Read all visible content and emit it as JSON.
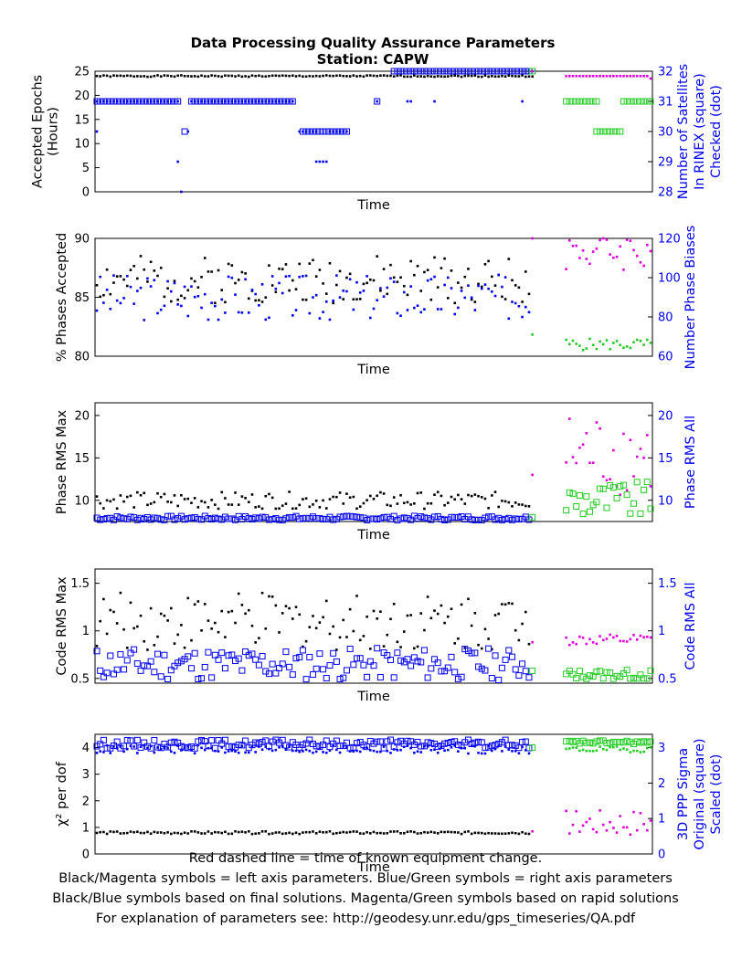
{
  "title": "Data Processing Quality Assurance Parameters",
  "subtitle": "Station: CAPW",
  "footer": [
    "Red dashed line = time of known equipment change.",
    "Black/Magenta symbols = left axis parameters. Blue/Green symbols = right axis parameters",
    "Black/Blue symbols based on final solutions.  Magenta/Green symbols based on rapid solutions",
    "For explanation of parameters see: http://geodesy.unr.edu/gps_timeseries/QA.pdf"
  ],
  "colors": {
    "final_left": "#000000",
    "final_right": "#0000ee",
    "rapid_left": "#dd00dd",
    "rapid_right": "#22cc22"
  },
  "chart_data": [
    {
      "type": "scatter",
      "xlabel": "Time",
      "ylabel_left": [
        "Accepted Epochs",
        "(Hours)"
      ],
      "ylabel_right": [
        "Number of Satellites",
        "In RINEX (square)",
        "Checked (dot)"
      ],
      "ylim_left": [
        0,
        25
      ],
      "ylim_right": [
        28,
        32
      ],
      "yticks_left": [
        0,
        5,
        10,
        15,
        20,
        25
      ],
      "yticks_right": [
        28,
        29,
        30,
        31,
        32
      ],
      "n": 150,
      "gap": [
        130,
        138
      ],
      "series": [
        {
          "side": "left",
          "marker": "dot",
          "color": "final_left",
          "segments": [
            {
              "from": 0,
              "to": 129,
              "base": 24,
              "amp": 0.15,
              "seed": 1
            }
          ]
        },
        {
          "side": "right",
          "marker": "square",
          "color": "final_right",
          "segments": [
            {
              "from": 0,
              "to": 24,
              "base": 31,
              "amp": 0
            },
            {
              "from": 26,
              "to": 26,
              "base": 30,
              "amp": 0
            },
            {
              "from": 28,
              "to": 58,
              "base": 31,
              "amp": 0
            },
            {
              "from": 61,
              "to": 74,
              "base": 30,
              "amp": 0
            },
            {
              "from": 83,
              "to": 83,
              "base": 31,
              "amp": 0
            },
            {
              "from": 88,
              "to": 129,
              "base": 32,
              "amp": 0
            }
          ]
        },
        {
          "side": "right",
          "marker": "dot",
          "color": "final_right",
          "segments": [
            {
              "from": 0,
              "to": 24,
              "base": 31,
              "amp": 0
            },
            {
              "from": 0,
              "to": 0,
              "base": 30,
              "amp": 0
            },
            {
              "from": 24,
              "to": 24,
              "base": 29,
              "amp": 0
            },
            {
              "from": 25,
              "to": 25,
              "base": 28,
              "amp": 0
            },
            {
              "from": 27,
              "to": 27,
              "base": 30,
              "amp": 0
            },
            {
              "from": 28,
              "to": 58,
              "base": 31,
              "amp": 0
            },
            {
              "from": 60,
              "to": 62,
              "base": 30,
              "amp": 0
            },
            {
              "from": 63,
              "to": 65,
              "base": 30,
              "amp": 0
            },
            {
              "from": 65,
              "to": 68,
              "base": 29,
              "amp": 0
            },
            {
              "from": 69,
              "to": 74,
              "base": 30,
              "amp": 0
            },
            {
              "from": 83,
              "to": 83,
              "base": 31,
              "amp": 0
            },
            {
              "from": 92,
              "to": 93,
              "base": 31,
              "amp": 0
            },
            {
              "from": 100,
              "to": 100,
              "base": 31,
              "amp": 0
            },
            {
              "from": 126,
              "to": 126,
              "base": 31,
              "amp": 0
            }
          ]
        },
        {
          "side": "left",
          "marker": "dot",
          "color": "rapid_left",
          "segments": [
            {
              "from": 129,
              "to": 129,
              "base": 25,
              "amp": 0
            },
            {
              "from": 139,
              "to": 163,
              "base": 24,
              "amp": 0
            },
            {
              "from": 164,
              "to": 164,
              "base": 23.5,
              "amp": 0
            }
          ]
        },
        {
          "side": "right",
          "marker": "square",
          "color": "rapid_right",
          "segments": [
            {
              "from": 129,
              "to": 129,
              "base": 32,
              "amp": 0
            },
            {
              "from": 139,
              "to": 148,
              "base": 31,
              "amp": 0
            },
            {
              "from": 148,
              "to": 155,
              "base": 30,
              "amp": 0
            },
            {
              "from": 156,
              "to": 164,
              "base": 31,
              "amp": 0
            }
          ]
        }
      ]
    },
    {
      "type": "scatter",
      "xlabel": "Time",
      "ylabel_left": [
        "% Phases Accepted"
      ],
      "ylabel_right": [
        "Number Phase Biases"
      ],
      "ylim_left": [
        80,
        90
      ],
      "ylim_right": [
        60,
        120
      ],
      "yticks_left": [
        80,
        85,
        90
      ],
      "yticks_right": [
        60,
        80,
        100,
        120
      ],
      "n": 150,
      "gap": [
        130,
        138
      ],
      "series": [
        {
          "side": "left",
          "marker": "dot",
          "color": "final_left",
          "segments": [
            {
              "from": 0,
              "to": 128,
              "base": 86.5,
              "amp": 2.0,
              "seed": 2
            }
          ]
        },
        {
          "side": "right",
          "marker": "dot",
          "color": "final_right",
          "segments": [
            {
              "from": 0,
              "to": 128,
              "base": 90,
              "amp": 12,
              "seed": 3
            }
          ]
        },
        {
          "side": "left",
          "marker": "dot",
          "color": "rapid_left",
          "segments": [
            {
              "from": 129,
              "to": 129,
              "base": 90,
              "amp": 0
            },
            {
              "from": 139,
              "to": 164,
              "base": 89,
              "amp": 1.8,
              "seed": 4
            }
          ]
        },
        {
          "side": "right",
          "marker": "dot",
          "color": "rapid_right",
          "segments": [
            {
              "from": 129,
              "to": 129,
              "base": 71,
              "amp": 0
            },
            {
              "from": 139,
              "to": 164,
              "base": 66,
              "amp": 3,
              "seed": 5
            }
          ]
        }
      ]
    },
    {
      "type": "scatter",
      "xlabel": "Time",
      "ylabel_left": [
        "Phase RMS Max"
      ],
      "ylabel_right": [
        "Phase RMS All"
      ],
      "ylim_left": [
        7.5,
        21.5
      ],
      "ylim_right": [
        7.5,
        21.5
      ],
      "yticks_left": [
        10,
        15,
        20
      ],
      "yticks_right": [
        10,
        15,
        20
      ],
      "n": 150,
      "gap": [
        130,
        138
      ],
      "series": [
        {
          "side": "left",
          "marker": "dot",
          "color": "final_left",
          "segments": [
            {
              "from": 0,
              "to": 128,
              "base": 10.0,
              "amp": 1.0,
              "seed": 6
            }
          ]
        },
        {
          "side": "right",
          "marker": "square",
          "color": "final_right",
          "segments": [
            {
              "from": 0,
              "to": 128,
              "base": 7.9,
              "amp": 0.25,
              "seed": 7
            }
          ]
        },
        {
          "side": "left",
          "marker": "dot",
          "color": "rapid_left",
          "segments": [
            {
              "from": 129,
              "to": 129,
              "base": 13,
              "amp": 0
            },
            {
              "from": 139,
              "to": 164,
              "base": 15.5,
              "amp": 5,
              "seed": 8
            }
          ]
        },
        {
          "side": "right",
          "marker": "square",
          "color": "rapid_right",
          "segments": [
            {
              "from": 129,
              "to": 129,
              "base": 8,
              "amp": 0
            },
            {
              "from": 139,
              "to": 164,
              "base": 10.0,
              "amp": 2.2,
              "seed": 9
            }
          ]
        }
      ]
    },
    {
      "type": "scatter",
      "xlabel": "Time",
      "ylabel_left": [
        "Code RMS Max"
      ],
      "ylabel_right": [
        "Code RMS All"
      ],
      "ylim_left": [
        0.45,
        1.65
      ],
      "ylim_right": [
        0.45,
        1.65
      ],
      "yticks_left": [
        0.5,
        1,
        1.5
      ],
      "yticks_right": [
        0.5,
        1,
        1.5
      ],
      "n": 150,
      "gap": [
        130,
        138
      ],
      "series": [
        {
          "side": "left",
          "marker": "dot",
          "color": "final_left",
          "segments": [
            {
              "from": 0,
              "to": 128,
              "base": 1.1,
              "amp": 0.3,
              "seed": 10
            }
          ]
        },
        {
          "side": "right",
          "marker": "square",
          "color": "final_right",
          "segments": [
            {
              "from": 0,
              "to": 128,
              "base": 0.65,
              "amp": 0.17,
              "seed": 11
            }
          ]
        },
        {
          "side": "left",
          "marker": "dot",
          "color": "rapid_left",
          "segments": [
            {
              "from": 129,
              "to": 129,
              "base": 0.88,
              "amp": 0
            },
            {
              "from": 139,
              "to": 164,
              "base": 0.9,
              "amp": 0.06,
              "seed": 12
            }
          ]
        },
        {
          "side": "right",
          "marker": "square",
          "color": "rapid_right",
          "segments": [
            {
              "from": 129,
              "to": 129,
              "base": 0.58,
              "amp": 0
            },
            {
              "from": 139,
              "to": 164,
              "base": 0.54,
              "amp": 0.05,
              "seed": 13
            }
          ]
        }
      ]
    },
    {
      "type": "scatter",
      "xlabel": "Time",
      "ylabel_left": [
        "χ² per dof"
      ],
      "ylabel_right": [
        "3D PPP Sigma",
        "Original (square)",
        "Scaled (dot)"
      ],
      "ylim_left": [
        0,
        4.5
      ],
      "ylim_right": [
        0,
        3.375
      ],
      "yticks_left": [
        0,
        1,
        2,
        3,
        4
      ],
      "yticks_right": [
        0,
        1,
        2,
        3
      ],
      "n": 150,
      "gap": [
        130,
        138
      ],
      "series": [
        {
          "side": "left",
          "marker": "dot",
          "color": "final_left",
          "segments": [
            {
              "from": 0,
              "to": 128,
              "base": 0.8,
              "amp": 0.05,
              "seed": 14
            }
          ]
        },
        {
          "side": "right",
          "marker": "square",
          "color": "final_right",
          "segments": [
            {
              "from": 0,
              "to": 128,
              "base": 3.1,
              "amp": 0.12,
              "seed": 15
            }
          ]
        },
        {
          "side": "right",
          "marker": "dot",
          "color": "final_right",
          "segments": [
            {
              "from": 0,
              "to": 128,
              "base": 2.95,
              "amp": 0.12,
              "seed": 16
            }
          ]
        },
        {
          "side": "left",
          "marker": "dot",
          "color": "rapid_left",
          "segments": [
            {
              "from": 129,
              "to": 129,
              "base": 0.85,
              "amp": 0
            },
            {
              "from": 139,
              "to": 164,
              "base": 1.2,
              "amp": 0.5,
              "seed": 17
            }
          ]
        },
        {
          "side": "right",
          "marker": "square",
          "color": "rapid_right",
          "segments": [
            {
              "from": 129,
              "to": 129,
              "base": 3.0,
              "amp": 0
            },
            {
              "from": 139,
              "to": 164,
              "base": 3.15,
              "amp": 0.05,
              "seed": 18
            }
          ]
        },
        {
          "side": "right",
          "marker": "dot",
          "color": "rapid_right",
          "segments": [
            {
              "from": 139,
              "to": 164,
              "base": 2.95,
              "amp": 0.08,
              "seed": 19
            }
          ]
        }
      ]
    }
  ]
}
